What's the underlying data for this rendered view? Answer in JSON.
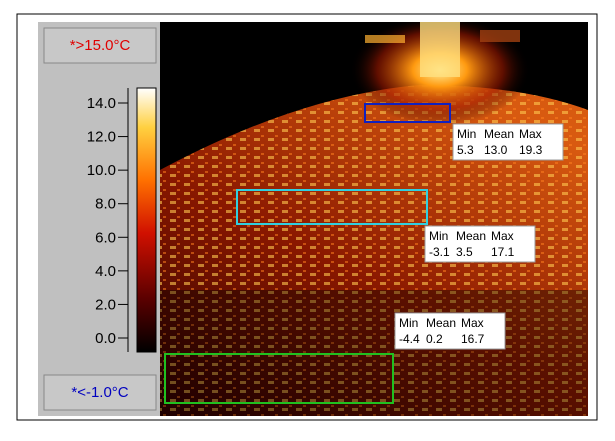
{
  "scale": {
    "max_label": "*>15.0°C",
    "min_label": "*<-1.0°C",
    "ticks": [
      "14.0",
      "12.0",
      "10.0",
      "8.0",
      "6.0",
      "4.0",
      "2.0",
      "0.0"
    ]
  },
  "regions": [
    {
      "headers": [
        "Min",
        "Mean",
        "Max"
      ],
      "values": [
        "5.3",
        "13.0",
        "19.3"
      ]
    },
    {
      "headers": [
        "Min",
        "Mean",
        "Max"
      ],
      "values": [
        "-3.1",
        "3.5",
        "17.1"
      ]
    },
    {
      "headers": [
        "Min",
        "Mean",
        "Max"
      ],
      "values": [
        "-4.4",
        "0.2",
        "16.7"
      ]
    }
  ]
}
